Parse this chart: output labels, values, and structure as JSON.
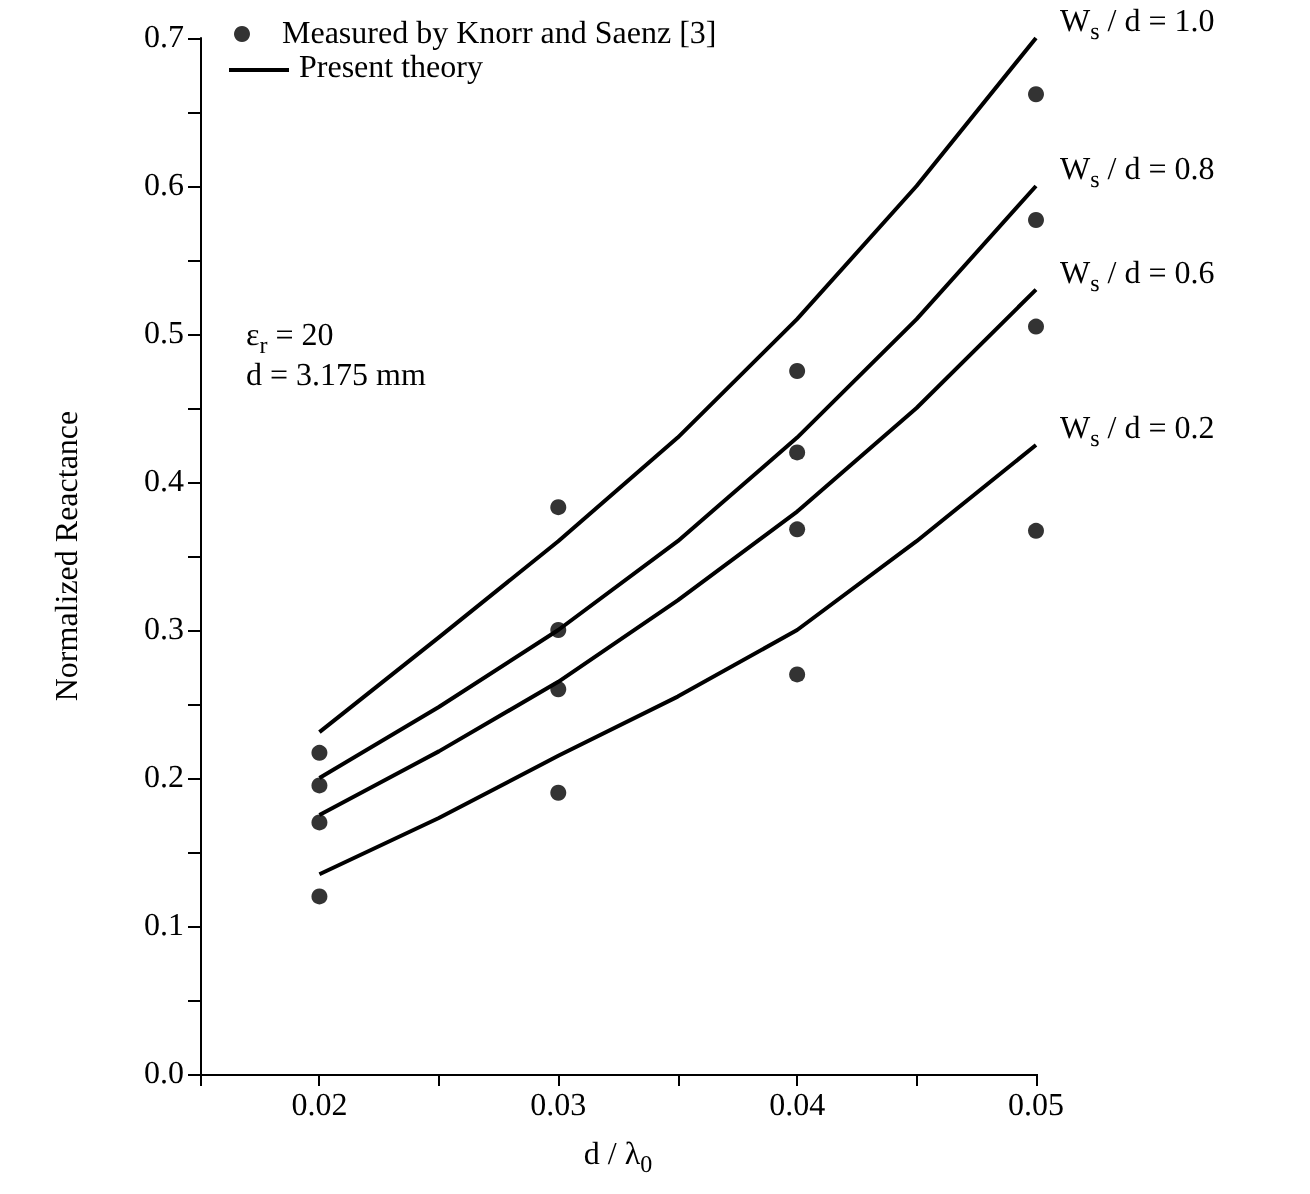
{
  "chart_data": {
    "type": "line",
    "xlabel": "d / λ$_{0}$",
    "ylabel": "Normalized Reactance",
    "xlim": [
      0.015,
      0.05
    ],
    "xticks": [
      {
        "value": 0.015,
        "label": null
      },
      0.02,
      {
        "value": 0.025,
        "label": null
      },
      0.03,
      {
        "value": 0.035,
        "label": null
      },
      0.04,
      {
        "value": 0.045,
        "label": null
      },
      0.05
    ],
    "ylim": [
      0,
      0.7
    ],
    "yticks": [
      {
        "value": 0,
        "label": "0.0"
      },
      {
        "value": 0.05,
        "label": null
      },
      0.1,
      {
        "value": 0.15,
        "label": null
      },
      0.2,
      {
        "value": 0.25,
        "label": null
      },
      0.3,
      {
        "value": 0.35,
        "label": null
      },
      0.4,
      {
        "value": 0.45,
        "label": null
      },
      0.5,
      {
        "value": 0.55,
        "label": null
      },
      0.6,
      {
        "value": 0.65,
        "label": null
      },
      0.7
    ],
    "grid": false,
    "legend": "top left",
    "line_style": "solid",
    "x": [
      0.02,
      0.025,
      0.03,
      0.035,
      0.04,
      0.045,
      0.05
    ],
    "series": [
      {
        "name": "Measured by Knorr and Saenz [3]",
        "type": "scatter",
        "marker": "circle",
        "color": "#000000",
        "x": [
          0.02,
          0.02,
          0.02,
          0.02,
          0.03,
          0.03,
          0.03,
          0.03,
          0.04,
          0.04,
          0.04,
          0.04,
          0.05,
          0.05,
          0.05,
          0.05
        ],
        "values": [
          0.217,
          0.195,
          0.17,
          0.12,
          0.383,
          0.3,
          0.26,
          0.19,
          0.475,
          0.42,
          0.368,
          0.27,
          0.662,
          0.577,
          0.505,
          0.367
        ]
      },
      {
        "name": "W$_{s}$ / d = 1.0",
        "marker": "none",
        "color": "#000000",
        "values": [
          0.231,
          0.295,
          0.36,
          0.43,
          0.51,
          0.6,
          0.7
        ]
      },
      {
        "name": "W$_{s}$ / d = 0.8",
        "marker": "none",
        "color": "#000000",
        "values": [
          0.2,
          0.248,
          0.3,
          0.36,
          0.43,
          0.51,
          0.6
        ]
      },
      {
        "name": "W$_{s}$ / d = 0.6",
        "marker": "none",
        "color": "#000000",
        "values": [
          0.175,
          0.218,
          0.265,
          0.32,
          0.38,
          0.45,
          0.53
        ]
      },
      {
        "name": "W$_{s}$ / d = 0.2",
        "marker": "none",
        "color": "#000000",
        "values": [
          0.135,
          0.173,
          0.215,
          0.255,
          0.3,
          0.36,
          0.425
        ]
      }
    ],
    "legend_title": "Present theory",
    "annotations": [
      "ε$_{r}$ = 20",
      "d = 3.175 mm"
    ]
  }
}
